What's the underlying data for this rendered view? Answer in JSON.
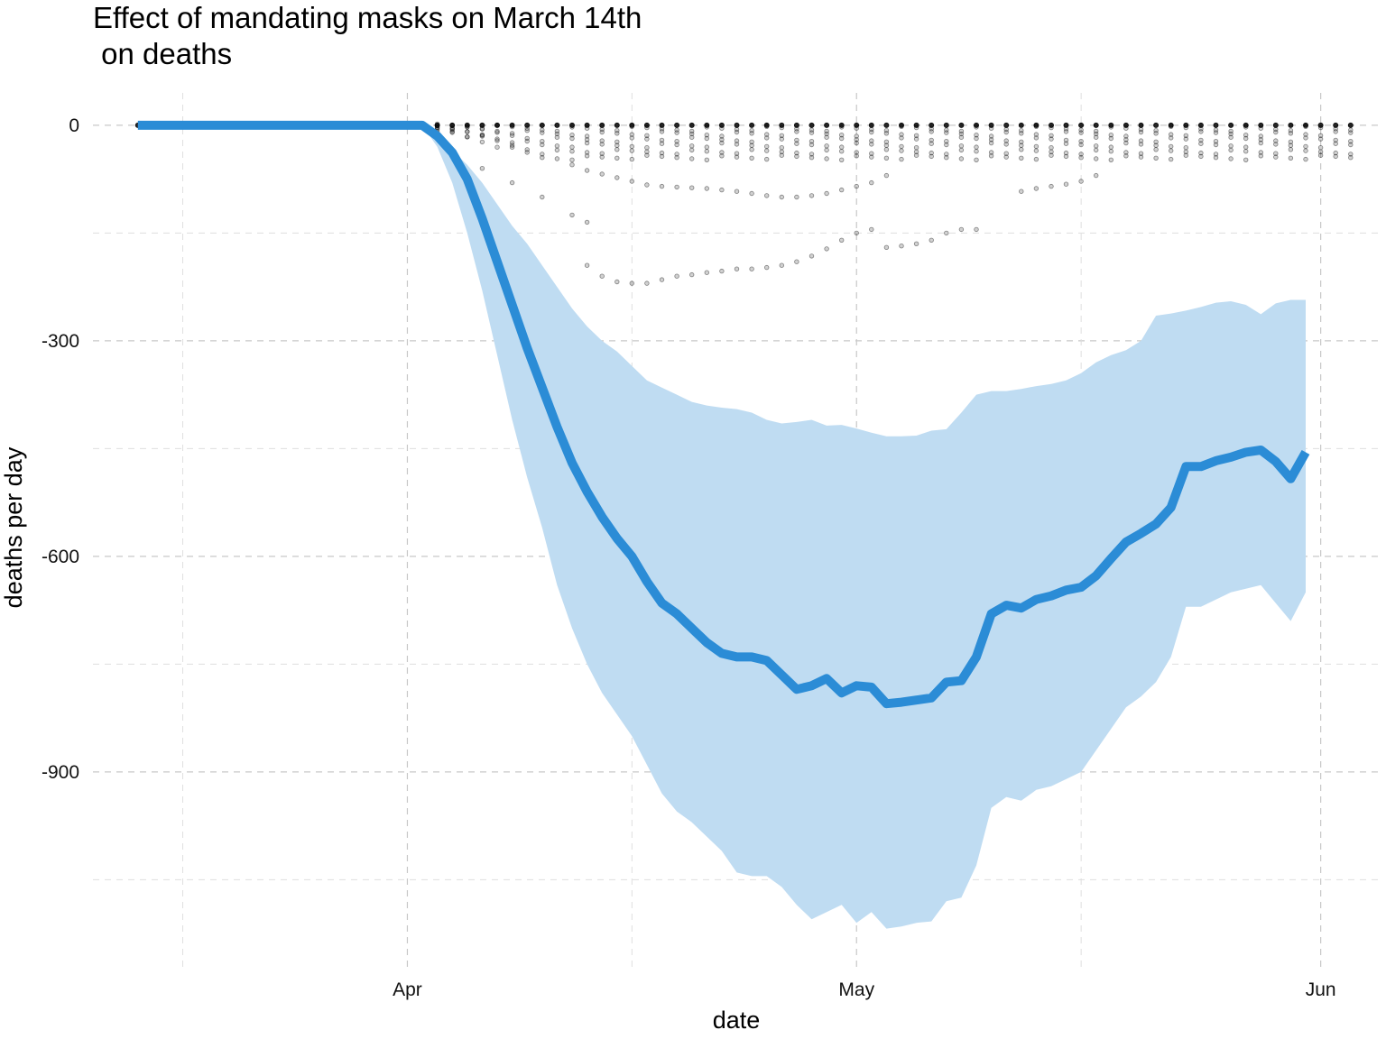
{
  "chart_data": {
    "type": "line",
    "title_lines": [
      "Effect of mandating masks on March 14th",
      " on deaths"
    ],
    "xlabel": "date",
    "ylabel": "deaths per day",
    "x_start": "2020-03-14",
    "x_end": "2020-06-03",
    "xlim": [
      "2020-03-11",
      "2020-06-05"
    ],
    "ylim": [
      -1175,
      45
    ],
    "x_ticks": [
      {
        "date": "2020-04-01",
        "label": "Apr"
      },
      {
        "date": "2020-05-01",
        "label": "May"
      },
      {
        "date": "2020-06-01",
        "label": "Jun"
      }
    ],
    "x_minor_ticks": [
      "2020-03-17",
      "2020-04-16",
      "2020-05-16"
    ],
    "y_ticks": [
      {
        "value": 0,
        "label": "0"
      },
      {
        "value": -300,
        "label": "-300"
      },
      {
        "value": -600,
        "label": "-600"
      },
      {
        "value": -900,
        "label": "-900"
      }
    ],
    "y_minor_ticks": [
      -150,
      -450,
      -750,
      -1050
    ],
    "grid": true,
    "legend": "none",
    "colors": {
      "line": "#2b8cd6",
      "band": "#bfdcf2",
      "dots": "#000000"
    },
    "series": [
      {
        "role": "mean",
        "points": [
          [
            "2020-03-14",
            0
          ],
          [
            "2020-04-02",
            0
          ],
          [
            "2020-04-03",
            -15
          ],
          [
            "2020-04-04",
            -38
          ],
          [
            "2020-04-05",
            -75
          ],
          [
            "2020-04-06",
            -130
          ],
          [
            "2020-04-07",
            -190
          ],
          [
            "2020-04-08",
            -250
          ],
          [
            "2020-04-09",
            -310
          ],
          [
            "2020-04-10",
            -365
          ],
          [
            "2020-04-11",
            -420
          ],
          [
            "2020-04-12",
            -470
          ],
          [
            "2020-04-13",
            -510
          ],
          [
            "2020-04-14",
            -545
          ],
          [
            "2020-04-15",
            -575
          ],
          [
            "2020-04-16",
            -600
          ],
          [
            "2020-04-17",
            -635
          ],
          [
            "2020-04-18",
            -665
          ],
          [
            "2020-04-19",
            -680
          ],
          [
            "2020-04-20",
            -700
          ],
          [
            "2020-04-21",
            -720
          ],
          [
            "2020-04-22",
            -735
          ],
          [
            "2020-04-23",
            -740
          ],
          [
            "2020-04-24",
            -740
          ],
          [
            "2020-04-25",
            -745
          ],
          [
            "2020-04-26",
            -765
          ],
          [
            "2020-04-27",
            -785
          ],
          [
            "2020-04-28",
            -780
          ],
          [
            "2020-04-29",
            -770
          ],
          [
            "2020-04-30",
            -790
          ],
          [
            "2020-05-01",
            -780
          ],
          [
            "2020-05-02",
            -782
          ],
          [
            "2020-05-03",
            -805
          ],
          [
            "2020-05-04",
            -803
          ],
          [
            "2020-05-05",
            -800
          ],
          [
            "2020-05-06",
            -797
          ],
          [
            "2020-05-07",
            -775
          ],
          [
            "2020-05-08",
            -773
          ],
          [
            "2020-05-09",
            -740
          ],
          [
            "2020-05-10",
            -680
          ],
          [
            "2020-05-11",
            -668
          ],
          [
            "2020-05-12",
            -672
          ],
          [
            "2020-05-13",
            -660
          ],
          [
            "2020-05-14",
            -655
          ],
          [
            "2020-05-15",
            -647
          ],
          [
            "2020-05-16",
            -643
          ],
          [
            "2020-05-17",
            -627
          ],
          [
            "2020-05-18",
            -603
          ],
          [
            "2020-05-19",
            -580
          ],
          [
            "2020-05-20",
            -568
          ],
          [
            "2020-05-21",
            -555
          ],
          [
            "2020-05-22",
            -532
          ],
          [
            "2020-05-23",
            -475
          ],
          [
            "2020-05-24",
            -475
          ],
          [
            "2020-05-25",
            -467
          ],
          [
            "2020-05-26",
            -462
          ],
          [
            "2020-05-27",
            -455
          ],
          [
            "2020-05-28",
            -452
          ],
          [
            "2020-05-29",
            -468
          ],
          [
            "2020-05-30",
            -492
          ],
          [
            "2020-05-31",
            -455
          ]
        ]
      },
      {
        "role": "interval",
        "upper": [
          [
            "2020-04-02",
            0
          ],
          [
            "2020-04-03",
            -20
          ],
          [
            "2020-04-04",
            -35
          ],
          [
            "2020-04-05",
            -55
          ],
          [
            "2020-04-06",
            -80
          ],
          [
            "2020-04-07",
            -110
          ],
          [
            "2020-04-08",
            -140
          ],
          [
            "2020-04-09",
            -165
          ],
          [
            "2020-04-10",
            -195
          ],
          [
            "2020-04-11",
            -225
          ],
          [
            "2020-04-12",
            -255
          ],
          [
            "2020-04-13",
            -280
          ],
          [
            "2020-04-14",
            -300
          ],
          [
            "2020-04-15",
            -315
          ],
          [
            "2020-04-16",
            -335
          ],
          [
            "2020-04-17",
            -355
          ],
          [
            "2020-04-18",
            -365
          ],
          [
            "2020-04-19",
            -375
          ],
          [
            "2020-04-20",
            -385
          ],
          [
            "2020-04-21",
            -390
          ],
          [
            "2020-04-22",
            -393
          ],
          [
            "2020-04-23",
            -395
          ],
          [
            "2020-04-24",
            -400
          ],
          [
            "2020-04-25",
            -410
          ],
          [
            "2020-04-26",
            -415
          ],
          [
            "2020-04-27",
            -413
          ],
          [
            "2020-04-28",
            -410
          ],
          [
            "2020-04-29",
            -418
          ],
          [
            "2020-04-30",
            -417
          ],
          [
            "2020-05-01",
            -422
          ],
          [
            "2020-05-02",
            -428
          ],
          [
            "2020-05-03",
            -433
          ],
          [
            "2020-05-04",
            -433
          ],
          [
            "2020-05-05",
            -432
          ],
          [
            "2020-05-06",
            -425
          ],
          [
            "2020-05-07",
            -423
          ],
          [
            "2020-05-08",
            -400
          ],
          [
            "2020-05-09",
            -375
          ],
          [
            "2020-05-10",
            -370
          ],
          [
            "2020-05-11",
            -370
          ],
          [
            "2020-05-12",
            -367
          ],
          [
            "2020-05-13",
            -363
          ],
          [
            "2020-05-14",
            -360
          ],
          [
            "2020-05-15",
            -355
          ],
          [
            "2020-05-16",
            -345
          ],
          [
            "2020-05-17",
            -330
          ],
          [
            "2020-05-18",
            -320
          ],
          [
            "2020-05-19",
            -313
          ],
          [
            "2020-05-20",
            -300
          ],
          [
            "2020-05-21",
            -265
          ],
          [
            "2020-05-22",
            -262
          ],
          [
            "2020-05-23",
            -258
          ],
          [
            "2020-05-24",
            -253
          ],
          [
            "2020-05-25",
            -247
          ],
          [
            "2020-05-26",
            -245
          ],
          [
            "2020-05-27",
            -250
          ],
          [
            "2020-05-28",
            -263
          ],
          [
            "2020-05-29",
            -248
          ],
          [
            "2020-05-30",
            -243
          ],
          [
            "2020-05-31",
            -243
          ]
        ],
        "lower": [
          [
            "2020-04-02",
            0
          ],
          [
            "2020-04-03",
            -30
          ],
          [
            "2020-04-04",
            -80
          ],
          [
            "2020-04-05",
            -150
          ],
          [
            "2020-04-06",
            -230
          ],
          [
            "2020-04-07",
            -320
          ],
          [
            "2020-04-08",
            -410
          ],
          [
            "2020-04-09",
            -490
          ],
          [
            "2020-04-10",
            -560
          ],
          [
            "2020-04-11",
            -640
          ],
          [
            "2020-04-12",
            -700
          ],
          [
            "2020-04-13",
            -750
          ],
          [
            "2020-04-14",
            -790
          ],
          [
            "2020-04-15",
            -820
          ],
          [
            "2020-04-16",
            -850
          ],
          [
            "2020-04-17",
            -890
          ],
          [
            "2020-04-18",
            -930
          ],
          [
            "2020-04-19",
            -955
          ],
          [
            "2020-04-20",
            -970
          ],
          [
            "2020-04-21",
            -990
          ],
          [
            "2020-04-22",
            -1010
          ],
          [
            "2020-04-23",
            -1040
          ],
          [
            "2020-04-24",
            -1045
          ],
          [
            "2020-04-25",
            -1045
          ],
          [
            "2020-04-26",
            -1060
          ],
          [
            "2020-04-27",
            -1085
          ],
          [
            "2020-04-28",
            -1105
          ],
          [
            "2020-04-29",
            -1095
          ],
          [
            "2020-04-30",
            -1085
          ],
          [
            "2020-05-01",
            -1110
          ],
          [
            "2020-05-02",
            -1095
          ],
          [
            "2020-05-03",
            -1118
          ],
          [
            "2020-05-04",
            -1115
          ],
          [
            "2020-05-05",
            -1110
          ],
          [
            "2020-05-06",
            -1108
          ],
          [
            "2020-05-07",
            -1080
          ],
          [
            "2020-05-08",
            -1075
          ],
          [
            "2020-05-09",
            -1030
          ],
          [
            "2020-05-10",
            -950
          ],
          [
            "2020-05-11",
            -935
          ],
          [
            "2020-05-12",
            -940
          ],
          [
            "2020-05-13",
            -925
          ],
          [
            "2020-05-14",
            -920
          ],
          [
            "2020-05-15",
            -910
          ],
          [
            "2020-05-16",
            -900
          ],
          [
            "2020-05-17",
            -870
          ],
          [
            "2020-05-18",
            -840
          ],
          [
            "2020-05-19",
            -810
          ],
          [
            "2020-05-20",
            -795
          ],
          [
            "2020-05-21",
            -775
          ],
          [
            "2020-05-22",
            -740
          ],
          [
            "2020-05-23",
            -670
          ],
          [
            "2020-05-24",
            -670
          ],
          [
            "2020-05-25",
            -660
          ],
          [
            "2020-05-26",
            -650
          ],
          [
            "2020-05-27",
            -645
          ],
          [
            "2020-05-28",
            -640
          ],
          [
            "2020-05-29",
            -665
          ],
          [
            "2020-05-30",
            -690
          ],
          [
            "2020-05-31",
            -650
          ]
        ]
      }
    ],
    "dot_groups": [
      {
        "role": "trajectory",
        "points": [
          [
            "2020-04-13",
            -195
          ],
          [
            "2020-04-14",
            -210
          ],
          [
            "2020-04-15",
            -218
          ],
          [
            "2020-04-16",
            -220
          ],
          [
            "2020-04-17",
            -220
          ],
          [
            "2020-04-18",
            -215
          ],
          [
            "2020-04-19",
            -210
          ],
          [
            "2020-04-20",
            -208
          ],
          [
            "2020-04-21",
            -205
          ],
          [
            "2020-04-22",
            -203
          ],
          [
            "2020-04-23",
            -200
          ],
          [
            "2020-04-24",
            -200
          ],
          [
            "2020-04-25",
            -198
          ],
          [
            "2020-04-26",
            -195
          ],
          [
            "2020-04-27",
            -190
          ],
          [
            "2020-04-28",
            -182
          ],
          [
            "2020-04-29",
            -172
          ],
          [
            "2020-04-30",
            -160
          ],
          [
            "2020-05-01",
            -150
          ],
          [
            "2020-05-02",
            -145
          ],
          [
            "2020-05-03",
            -170
          ],
          [
            "2020-05-04",
            -168
          ],
          [
            "2020-05-05",
            -165
          ],
          [
            "2020-05-06",
            -160
          ],
          [
            "2020-05-07",
            -150
          ],
          [
            "2020-05-08",
            -145
          ],
          [
            "2020-05-09",
            -145
          ]
        ]
      },
      {
        "role": "trajectory",
        "points": [
          [
            "2020-04-06",
            -60
          ],
          [
            "2020-04-08",
            -80
          ],
          [
            "2020-04-10",
            -100
          ],
          [
            "2020-04-12",
            -125
          ],
          [
            "2020-04-13",
            -135
          ]
        ]
      },
      {
        "role": "trajectory",
        "points": [
          [
            "2020-04-12",
            -55
          ],
          [
            "2020-04-13",
            -63
          ],
          [
            "2020-04-14",
            -68
          ],
          [
            "2020-04-15",
            -73
          ],
          [
            "2020-04-16",
            -78
          ],
          [
            "2020-04-17",
            -83
          ],
          [
            "2020-04-18",
            -85
          ],
          [
            "2020-04-19",
            -86
          ],
          [
            "2020-04-20",
            -87
          ],
          [
            "2020-04-21",
            -88
          ],
          [
            "2020-04-22",
            -90
          ],
          [
            "2020-04-23",
            -92
          ],
          [
            "2020-04-24",
            -95
          ],
          [
            "2020-04-25",
            -98
          ],
          [
            "2020-04-26",
            -100
          ],
          [
            "2020-04-27",
            -100
          ],
          [
            "2020-04-28",
            -98
          ],
          [
            "2020-04-29",
            -95
          ],
          [
            "2020-04-30",
            -90
          ],
          [
            "2020-05-01",
            -85
          ],
          [
            "2020-05-02",
            -80
          ],
          [
            "2020-05-03",
            -70
          ]
        ]
      },
      {
        "role": "trajectory",
        "points": [
          [
            "2020-05-12",
            -92
          ],
          [
            "2020-05-13",
            -88
          ],
          [
            "2020-05-14",
            -85
          ],
          [
            "2020-05-15",
            -82
          ],
          [
            "2020-05-16",
            -78
          ],
          [
            "2020-05-17",
            -70
          ]
        ]
      }
    ],
    "dot_band": {
      "start": "2020-04-02",
      "end": "2020-06-03",
      "levels": [
        -5,
        -12,
        -20,
        -28,
        -37,
        -45
      ]
    }
  }
}
